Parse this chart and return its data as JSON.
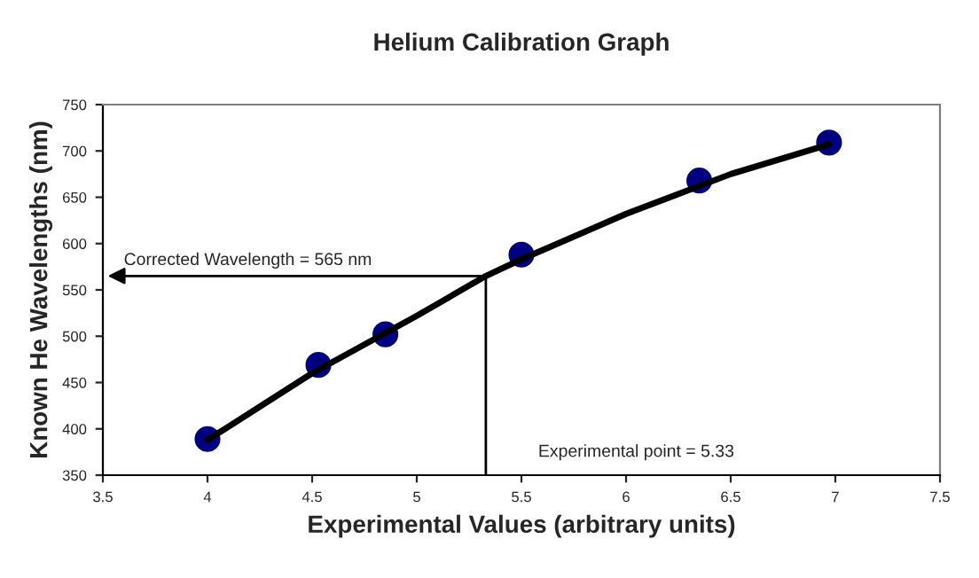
{
  "chart_data": {
    "type": "scatter",
    "title": "Helium Calibration Graph",
    "xlabel": "Experimental Values (arbitrary units)",
    "ylabel": "Known He Wavelengths (nm)",
    "x": [
      4.0,
      4.53,
      4.85,
      5.5,
      6.35,
      6.97
    ],
    "series": [
      {
        "color": "#000080",
        "marker": "circle",
        "values": [
          389,
          469,
          502,
          588,
          668,
          709
        ]
      },
      {
        "type": "line",
        "color": "#000000",
        "marker": "none",
        "x": [
          5.33,
          5.33
        ],
        "values": [
          350,
          565
        ]
      },
      {
        "type": "line",
        "color": "#000000",
        "marker": "none",
        "x": [
          4.0,
          4.5,
          5.0,
          5.33,
          5.5,
          6.0,
          6.5,
          6.97
        ],
        "values": [
          388,
          460,
          522,
          565,
          583,
          632,
          675,
          707
        ]
      }
    ],
    "annotations": [
      {
        "text": "Corrected Wavelength = 565 nm",
        "x": 5.33,
        "y": 565
      },
      "Experimental point = 5.33"
    ],
    "xlim": [
      3.5,
      7.5
    ],
    "xticks": [
      3.5,
      4,
      4.5,
      5,
      5.5,
      6,
      6.5,
      7,
      7.5
    ],
    "ylim": [
      350,
      750
    ],
    "yticks": [
      350,
      400,
      450,
      500,
      550,
      600,
      650,
      700,
      750
    ],
    "grid": false,
    "legend": false
  }
}
